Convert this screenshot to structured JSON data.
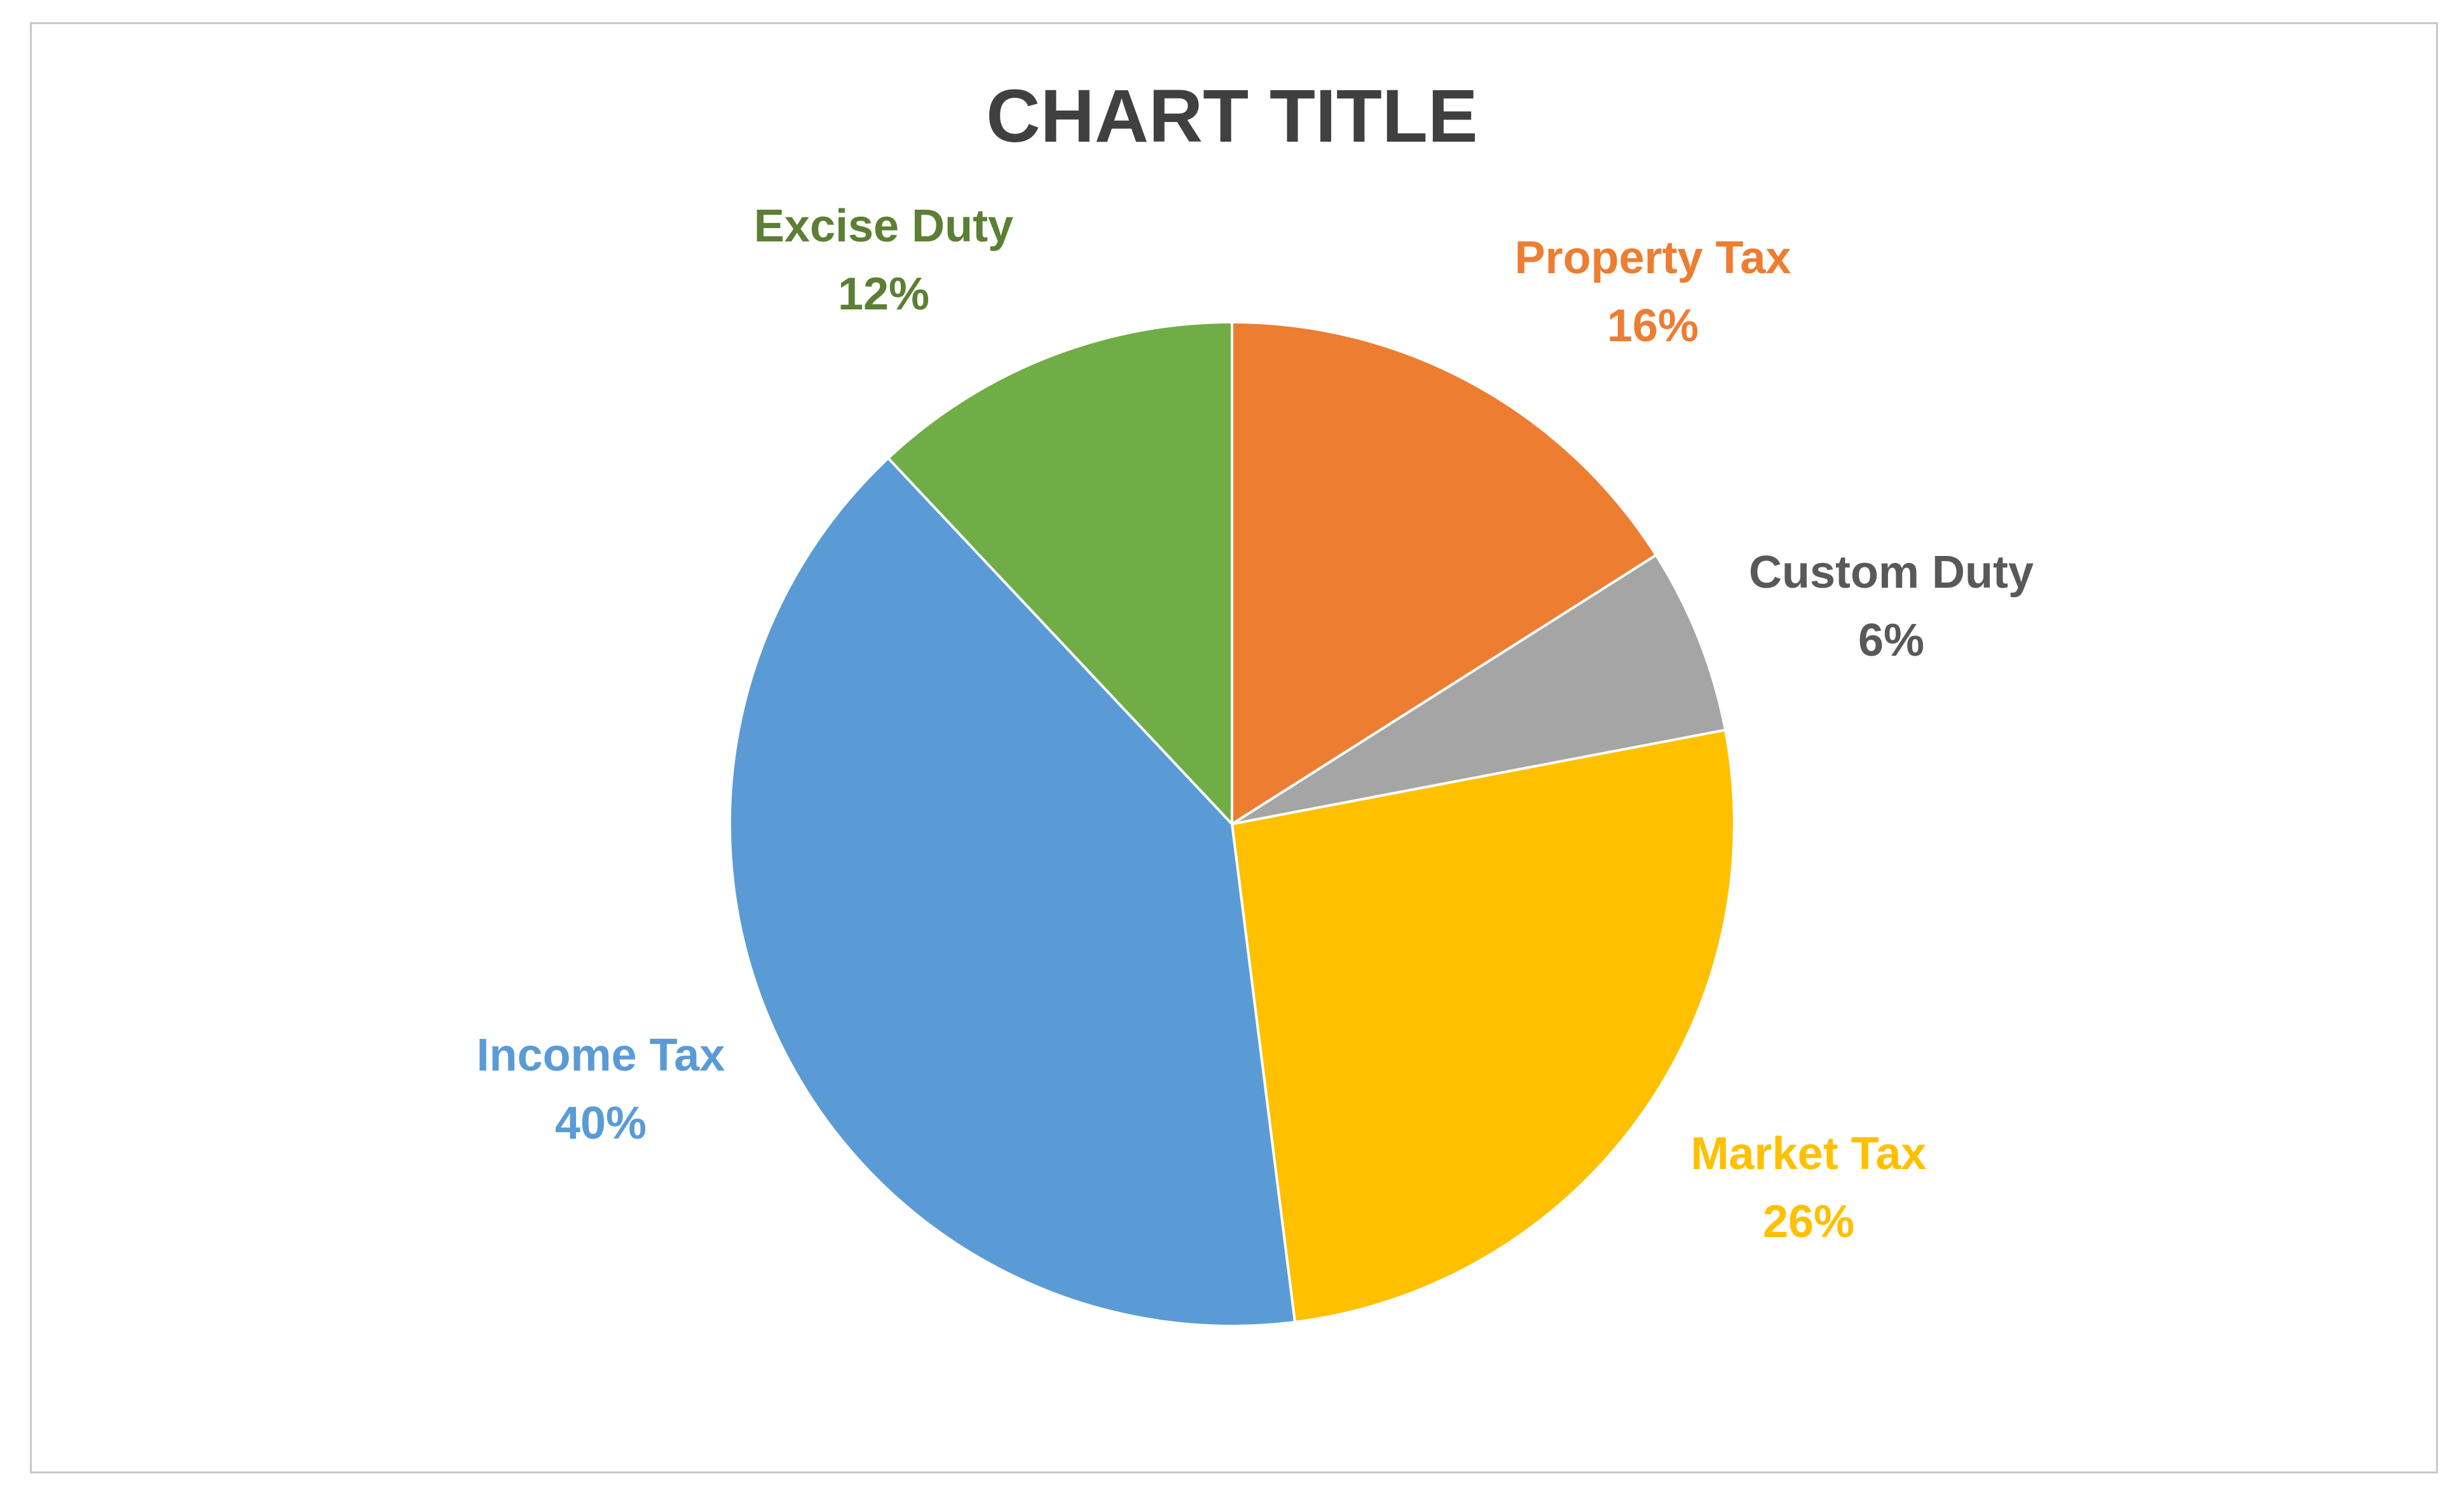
{
  "chart_data": {
    "type": "pie",
    "title": "CHART TITLE",
    "slices": [
      {
        "label": "Property Tax",
        "value": 16,
        "display": "16%",
        "color": "#ED7D31"
      },
      {
        "label": "Custom Duty",
        "value": 6,
        "display": "6%",
        "color": "#A5A5A5",
        "label_color": "#595959"
      },
      {
        "label": "Market Tax",
        "value": 26,
        "display": "26%",
        "color": "#FFC000"
      },
      {
        "label": "Income Tax",
        "value": 40,
        "display": "40%",
        "color": "#5B9BD5"
      },
      {
        "label": "Excise Duty",
        "value": 12,
        "display": "12%",
        "color": "#70AD47",
        "label_color": "#5B7F34"
      }
    ],
    "start_angle_deg": 0,
    "direction": "clockwise",
    "legend": "none",
    "label_position": "outside"
  }
}
